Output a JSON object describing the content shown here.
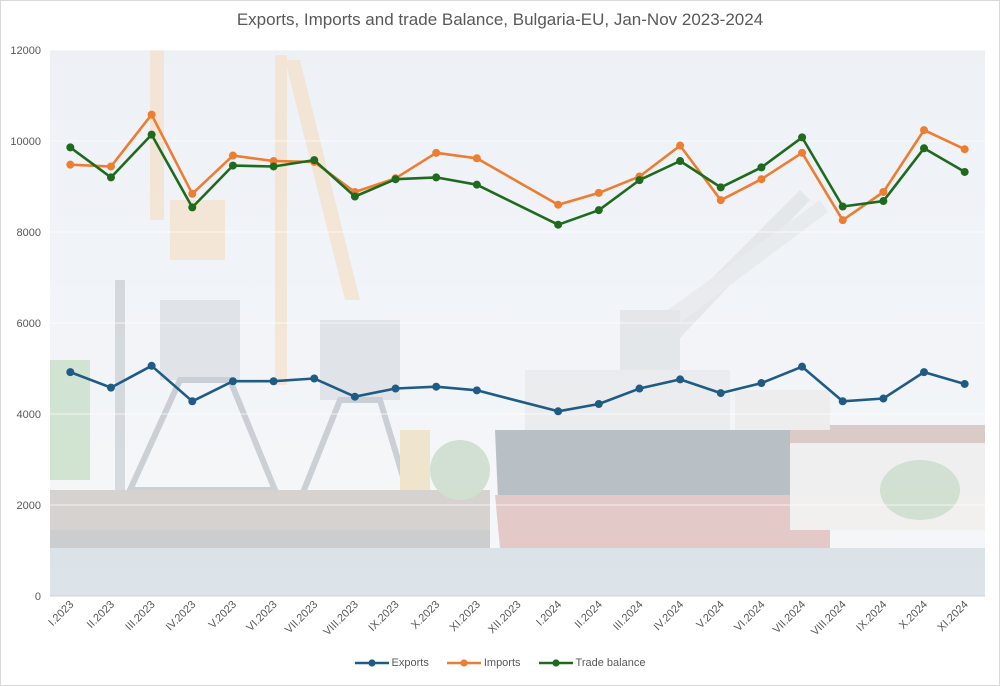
{
  "chart_data": {
    "type": "line",
    "title": "Exports, Imports and trade Balance, Bulgaria-EU, Jan-Nov 2023-2024",
    "xlabel": "",
    "ylabel": "",
    "ylim": [
      0,
      12000
    ],
    "yticks": [
      "0",
      "2000",
      "4000",
      "6000",
      "8000",
      "10000",
      "12000"
    ],
    "grid": true,
    "legend_position": "bottom",
    "background": "photo of harbor cranes and a bulk-carrier ship at port (faded)",
    "categories": [
      "I.2023",
      "II.2023",
      "III.2023",
      "IV.2023",
      "V.2023",
      "VI.2023",
      "VII.2023",
      "VIII.2023",
      "IX.2023",
      "X.2023",
      "XI.2023",
      "XII.2023",
      "I.2024",
      "II.2024",
      "III.2024",
      "IV.2024",
      "V.2024",
      "VI.2024",
      "VII.2024",
      "VIII.2024",
      "IX.2024",
      "X.2024",
      "XI.2024"
    ],
    "series": [
      {
        "name": "Exports",
        "color": "#1f5c85",
        "values": [
          4920,
          4580,
          5060,
          4280,
          4720,
          4720,
          4780,
          4380,
          4560,
          4600,
          4520,
          null,
          4060,
          4220,
          4560,
          4760,
          4460,
          4680,
          5040,
          4280,
          4340,
          4920,
          4660
        ]
      },
      {
        "name": "Imports",
        "color": "#ed7d31",
        "values": [
          9480,
          9440,
          10580,
          8840,
          9680,
          9560,
          9540,
          8880,
          9180,
          9740,
          9620,
          null,
          8600,
          8860,
          9220,
          9900,
          8700,
          9160,
          9740,
          8260,
          8880,
          10240,
          9820
        ]
      },
      {
        "name": "Trade balance",
        "color": "#1e6b1e",
        "values": [
          9860,
          9200,
          10140,
          8540,
          9460,
          9440,
          9580,
          8780,
          9160,
          9200,
          9040,
          null,
          8160,
          8480,
          9140,
          9560,
          8980,
          9420,
          10080,
          8560,
          8680,
          9840,
          9320
        ]
      }
    ]
  }
}
